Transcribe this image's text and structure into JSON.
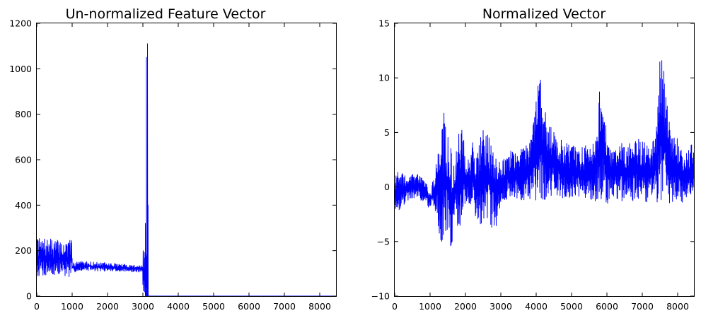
{
  "figure": {
    "line_color": "#0000ff",
    "background_color": "#ffffff"
  },
  "chart_data": [
    {
      "type": "line",
      "title": "Un-normalized Feature Vector",
      "xlabel": "",
      "ylabel": "",
      "xlim": [
        0,
        8460
      ],
      "ylim": [
        0,
        1200
      ],
      "xticks": [
        0,
        1000,
        2000,
        3000,
        4000,
        5000,
        6000,
        7000,
        8000
      ],
      "yticks": [
        0,
        200,
        400,
        600,
        800,
        1000,
        1200
      ],
      "xtick_labels": [
        "0",
        "1000",
        "2000",
        "3000",
        "4000",
        "5000",
        "6000",
        "7000",
        "8000"
      ],
      "ytick_labels": [
        "0",
        "200",
        "400",
        "600",
        "800",
        "1000",
        "1200"
      ],
      "grid": false,
      "series": [
        {
          "color": "#0000ff",
          "segments": [
            {
              "x": [
                0,
                1000
              ],
              "low": [
                85,
                80
              ],
              "high": [
                255,
                245
              ]
            },
            {
              "x": [
                1000,
                1180
              ],
              "low": [
                100,
                112
              ],
              "high": [
                150,
                150
              ]
            },
            {
              "x": [
                1180,
                3000
              ],
              "low": [
                112,
                105
              ],
              "high": [
                155,
                135
              ]
            },
            {
              "x": [
                3000,
                3150
              ],
              "low": [
                0,
                0
              ],
              "high": [
                200,
                200
              ]
            }
          ],
          "spikes": [
            {
              "x": 3070,
              "y": 320
            },
            {
              "x": 3100,
              "y": 1050
            },
            {
              "x": 3130,
              "y": 1110
            },
            {
              "x": 3145,
              "y": 400
            }
          ],
          "tail": {
            "x": [
              3150,
              8460
            ],
            "y": 0
          }
        }
      ]
    },
    {
      "type": "line",
      "title": "Normalized Vector",
      "xlabel": "",
      "ylabel": "",
      "xlim": [
        0,
        8460
      ],
      "ylim": [
        -10,
        15
      ],
      "xticks": [
        0,
        1000,
        2000,
        3000,
        4000,
        5000,
        6000,
        7000,
        8000
      ],
      "yticks": [
        -10,
        -5,
        0,
        5,
        10,
        15
      ],
      "xtick_labels": [
        "0",
        "1000",
        "2000",
        "3000",
        "4000",
        "5000",
        "6000",
        "7000",
        "8000"
      ],
      "ytick_labels": [
        "−10",
        "−5",
        "0",
        "5",
        "10",
        "15"
      ],
      "grid": false,
      "series": [
        {
          "color": "#0000ff",
          "envelope": {
            "x": [
              0,
              150,
              300,
              500,
              700,
              800,
              900,
              1000,
              1100,
              1200,
              1300,
              1400,
              1500,
              1600,
              1700,
              1800,
              1900,
              2000,
              2100,
              2200,
              2300,
              2400,
              2500,
              2600,
              2700,
              2800,
              2900,
              3000,
              3200,
              3500,
              3800,
              4000,
              4100,
              4300,
              4500,
              4800,
              5000,
              5200,
              5500,
              5700,
              5800,
              5900,
              6000,
              6200,
              6500,
              6800,
              7000,
              7200,
              7400,
              7500,
              7600,
              7700,
              7800,
              8000,
              8200,
              8460
            ],
            "low": [
              -2,
              -2.2,
              -1.5,
              -1,
              -1.2,
              -1.5,
              -1.8,
              -2,
              -2,
              -3,
              -5.8,
              -5,
              -4.5,
              -6.5,
              -3,
              -4,
              -3.5,
              -1.5,
              -2,
              -2,
              -3,
              -4.5,
              -3,
              -2.8,
              -3.5,
              -5,
              -3,
              -1.5,
              -1.3,
              -1.2,
              -1.2,
              -1.2,
              -1.2,
              -1.3,
              -1.2,
              -1.1,
              -1.2,
              -1,
              -1.5,
              -1.3,
              -1.3,
              -1.5,
              -1.5,
              -1.5,
              -1.3,
              -1.4,
              -1.5,
              -1.3,
              -1.4,
              -1.5,
              -1.5,
              -1.4,
              -1.5,
              -1.4,
              -1.4,
              -1.4
            ],
            "high": [
              1.2,
              1.5,
              1,
              1.2,
              1.5,
              1,
              0.5,
              -0.5,
              1,
              3,
              4.5,
              7,
              5,
              3.5,
              2,
              5,
              6,
              3,
              2.5,
              5,
              2.5,
              5,
              5.5,
              5,
              4.5,
              5,
              3,
              2,
              3.5,
              3.5,
              4,
              9,
              11,
              6,
              5.5,
              4,
              4,
              3.5,
              4,
              4.5,
              10,
              9,
              4.5,
              4.2,
              4,
              4.5,
              4.5,
              3.5,
              5.5,
              12,
              11.5,
              8,
              5,
              4.5,
              3,
              4.5
            ]
          }
        }
      ]
    }
  ]
}
